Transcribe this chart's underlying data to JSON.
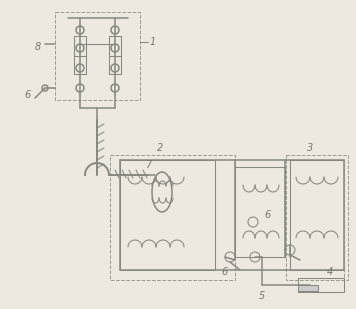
{
  "bg_color": "#ede8e0",
  "line_color": "#888880",
  "lw": 1.1,
  "lw_thin": 0.75,
  "lw_dash": 0.7,
  "label_color": "#777770",
  "fig_width": 3.56,
  "fig_height": 3.09,
  "dpi": 100
}
